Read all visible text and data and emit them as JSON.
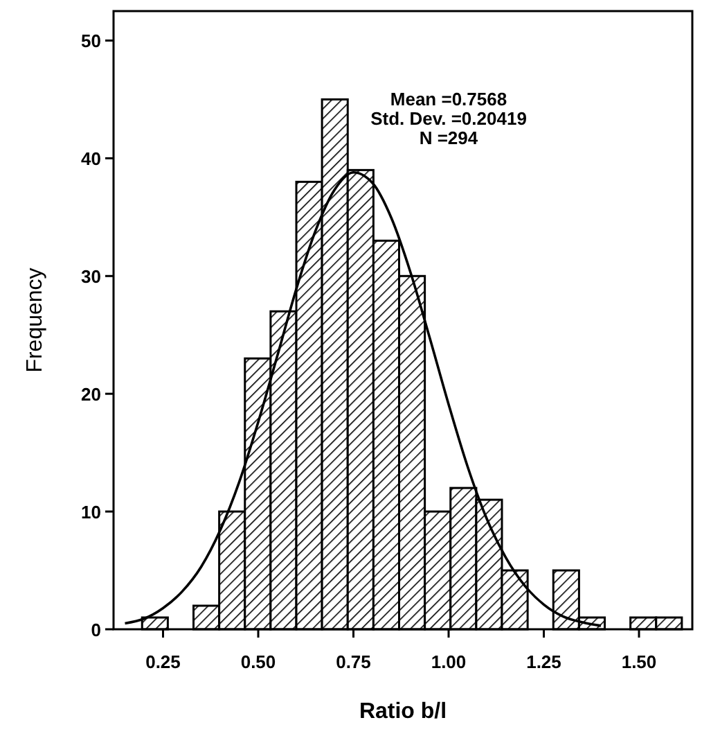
{
  "chart_data": {
    "type": "histogram",
    "xlabel": "Ratio b/l",
    "ylabel": "Frequency",
    "bins": [
      0.195,
      0.2625,
      0.33,
      0.3975,
      0.465,
      0.5325,
      0.6,
      0.6675,
      0.735,
      0.8025,
      0.87,
      0.9375,
      1.005,
      1.0725,
      1.14,
      1.2075,
      1.275,
      1.3425,
      1.41,
      1.4775,
      1.545,
      1.6125
    ],
    "values": [
      1,
      0,
      2,
      10,
      23,
      27,
      38,
      45,
      39,
      33,
      30,
      10,
      12,
      11,
      5,
      0,
      5,
      1,
      0,
      1,
      1
    ],
    "color": "#000000",
    "series": [
      {
        "type": "line",
        "color": "#000000",
        "x": [
          0.15,
          0.2,
          0.25,
          0.3,
          0.35,
          0.4,
          0.45,
          0.5,
          0.55,
          0.6,
          0.65,
          0.7,
          0.75,
          0.8,
          0.85,
          0.9,
          0.95,
          1.0,
          1.05,
          1.1,
          1.15,
          1.2,
          1.25,
          1.3,
          1.35,
          1.4
        ],
        "values": [
          0.5,
          0.9,
          1.8,
          3.2,
          5.3,
          8.4,
          12.5,
          17.6,
          23.2,
          28.9,
          33.8,
          37.3,
          38.8,
          37.9,
          34.9,
          30.3,
          24.8,
          19.1,
          13.8,
          9.4,
          6.1,
          3.7,
          2.1,
          1.1,
          0.6,
          0.3
        ]
      }
    ],
    "xlim": [
      0.12,
      1.64
    ],
    "ylim": [
      0,
      52.5
    ],
    "xticks": [
      0.25,
      {
        "value": 0.5,
        "label": "0.50"
      },
      0.75,
      {
        "value": 1.0,
        "label": "1.00"
      },
      1.25,
      {
        "value": 1.5,
        "label": "1.50"
      }
    ],
    "yticks": [
      0,
      10,
      20,
      30,
      40,
      50
    ],
    "annotations": [
      "Mean =0.7568",
      "Std. Dev. =0.20419",
      "N =294"
    ],
    "grid": false,
    "marker": "none"
  }
}
